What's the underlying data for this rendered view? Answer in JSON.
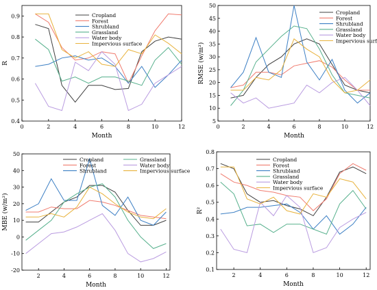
{
  "chart_data": [
    {
      "type": "line",
      "xlabel": "Month",
      "ylabel": "R",
      "x": [
        1,
        2,
        3,
        4,
        5,
        6,
        7,
        8,
        9,
        10,
        11,
        12
      ],
      "xlim": [
        0,
        12
      ],
      "ylim": [
        0.4,
        0.95
      ],
      "xticks": [
        0,
        2,
        4,
        6,
        8,
        10,
        12
      ],
      "yticks": [
        0.4,
        0.5,
        0.6,
        0.7,
        0.8,
        0.9
      ],
      "ytick_labels": [
        "0.4",
        "0.5",
        "0.6",
        "0.7",
        "0.8",
        "0.9"
      ],
      "legend_position": "upper-center",
      "series": [
        {
          "name": "Cropland",
          "color": "#3f3f3f",
          "values": [
            0.86,
            0.84,
            0.57,
            0.49,
            0.57,
            0.57,
            0.55,
            0.555,
            0.73,
            0.78,
            0.8,
            0.79
          ]
        },
        {
          "name": "Forest",
          "color": "#f07b6e",
          "values": [
            0.91,
            0.87,
            0.75,
            0.69,
            0.7,
            0.73,
            0.72,
            0.58,
            0.71,
            0.83,
            0.91,
            0.905
          ]
        },
        {
          "name": "Shrubland",
          "color": "#3c7fc4",
          "values": [
            0.66,
            0.67,
            0.7,
            0.71,
            0.69,
            0.7,
            0.66,
            0.58,
            0.66,
            0.56,
            0.62,
            0.69
          ]
        },
        {
          "name": "Grassland",
          "color": "#56b08c",
          "values": [
            0.79,
            0.74,
            0.59,
            0.61,
            0.58,
            0.61,
            0.61,
            0.59,
            0.57,
            0.69,
            0.75,
            0.67
          ]
        },
        {
          "name": "Water body",
          "color": "#b99be0",
          "values": [
            0.58,
            0.47,
            0.45,
            0.68,
            0.64,
            0.73,
            0.67,
            0.45,
            0.48,
            0.58,
            0.62,
            0.66
          ]
        },
        {
          "name": "Impervious surface",
          "color": "#e8b23c",
          "values": [
            0.91,
            0.91,
            0.74,
            0.7,
            0.73,
            0.67,
            0.66,
            0.74,
            0.72,
            0.81,
            0.77,
            0.72
          ]
        }
      ]
    },
    {
      "type": "line",
      "xlabel": "Month",
      "ylabel": "RMSE (w/m²)",
      "x": [
        1,
        2,
        3,
        4,
        5,
        6,
        7,
        8,
        9,
        10,
        11,
        12
      ],
      "xlim": [
        0,
        12
      ],
      "ylim": [
        5,
        50
      ],
      "xticks": [
        0,
        2,
        4,
        6,
        8,
        10,
        12
      ],
      "yticks": [
        5,
        10,
        15,
        20,
        25,
        30,
        35,
        40,
        45,
        50
      ],
      "ytick_labels": [
        "5",
        "10",
        "15",
        "20",
        "25",
        "30",
        "35",
        "40",
        "45",
        "50"
      ],
      "legend_position": "upper-center",
      "series": [
        {
          "name": "Cropland",
          "color": "#3f3f3f",
          "values": [
            14,
            15,
            22,
            27,
            30,
            35,
            37,
            35,
            27,
            19,
            17,
            16
          ]
        },
        {
          "name": "Forest",
          "color": "#f07b6e",
          "values": [
            18,
            19,
            24,
            24,
            23,
            26.5,
            27.5,
            28.5,
            26,
            21,
            17,
            17
          ]
        },
        {
          "name": "Shrubland",
          "color": "#3c7fc4",
          "values": [
            18,
            24,
            37.5,
            24,
            22,
            50,
            28,
            21,
            29,
            17,
            12,
            16
          ]
        },
        {
          "name": "Grassland",
          "color": "#56b08c",
          "values": [
            11,
            17,
            28,
            33,
            38,
            42,
            41,
            33,
            23,
            16,
            15,
            14
          ]
        },
        {
          "name": "Water body",
          "color": "#b99be0",
          "values": [
            16,
            12,
            14,
            10,
            11,
            12,
            19,
            16,
            20,
            22,
            17,
            11
          ]
        },
        {
          "name": "Impervious surface",
          "color": "#e8b23c",
          "values": [
            17,
            17,
            22,
            21,
            25,
            37,
            33,
            30,
            21,
            16,
            17,
            21
          ]
        }
      ]
    },
    {
      "type": "line",
      "xlabel": "Month",
      "ylabel": "MBE (w/m²)",
      "x": [
        1,
        2,
        3,
        4,
        5,
        6,
        7,
        8,
        9,
        10,
        11,
        12
      ],
      "xlim": [
        0.7,
        12.3
      ],
      "ylim": [
        -20,
        50
      ],
      "xticks": [
        2,
        4,
        6,
        8,
        10,
        12
      ],
      "yticks": [
        -20,
        -10,
        0,
        10,
        20,
        30,
        40,
        50
      ],
      "ytick_labels": [
        "-20",
        "-10",
        "0",
        "10",
        "20",
        "30",
        "40",
        "50"
      ],
      "legend_position": "upper-center",
      "series": [
        {
          "name": "Cropland",
          "color": "#3f3f3f",
          "values": [
            9,
            9,
            15,
            21,
            24,
            31,
            31,
            27,
            16,
            7,
            7,
            10
          ]
        },
        {
          "name": "Forest",
          "color": "#f07b6e",
          "values": [
            15,
            15,
            18,
            17,
            17,
            22,
            21,
            19,
            16,
            13,
            12,
            11
          ]
        },
        {
          "name": "Shrubland",
          "color": "#3c7fc4",
          "values": [
            16,
            20,
            35,
            22,
            22,
            47,
            19,
            13,
            24,
            10,
            7,
            15
          ]
        },
        {
          "name": "Grassland",
          "color": "#56b08c",
          "values": [
            -2,
            4,
            10,
            21,
            26,
            30,
            32,
            24,
            10,
            0,
            -7,
            -4
          ]
        },
        {
          "name": "Water body",
          "color": "#b99be0",
          "values": [
            -10,
            -4,
            2,
            3,
            6,
            10,
            14,
            4,
            -10,
            -15,
            -13,
            -9
          ]
        },
        {
          "name": "Impervious surface",
          "color": "#e8b23c",
          "values": [
            12,
            12,
            14,
            12,
            18,
            30,
            26,
            20,
            15,
            12,
            11,
            17
          ]
        }
      ]
    },
    {
      "type": "line",
      "xlabel": "Month",
      "ylabel": "R²",
      "x": [
        1,
        2,
        3,
        4,
        5,
        6,
        7,
        8,
        9,
        10,
        11,
        12
      ],
      "xlim": [
        0.7,
        12.3
      ],
      "ylim": [
        0.1,
        0.8
      ],
      "xticks": [
        2,
        4,
        6,
        8,
        10,
        12
      ],
      "yticks": [
        0.1,
        0.2,
        0.3,
        0.4,
        0.5,
        0.6,
        0.7,
        0.8
      ],
      "ytick_labels": [
        "0.1",
        "0.2",
        "0.3",
        "0.4",
        "0.5",
        "0.6",
        "0.7",
        "0.8"
      ],
      "legend_position": "upper-center",
      "series": [
        {
          "name": "Cropland",
          "color": "#3f3f3f",
          "values": [
            0.73,
            0.7,
            0.55,
            0.5,
            0.51,
            0.48,
            0.46,
            0.42,
            0.53,
            0.68,
            0.71,
            0.67
          ]
        },
        {
          "name": "Forest",
          "color": "#f07b6e",
          "values": [
            0.67,
            0.62,
            0.6,
            0.57,
            0.56,
            0.54,
            0.53,
            0.45,
            0.52,
            0.67,
            0.73,
            0.69
          ]
        },
        {
          "name": "Shrubland",
          "color": "#3c7fc4",
          "values": [
            0.43,
            0.44,
            0.47,
            0.47,
            0.48,
            0.49,
            0.44,
            0.34,
            0.42,
            0.31,
            0.37,
            0.47
          ]
        },
        {
          "name": "Grassland",
          "color": "#56b08c",
          "values": [
            0.62,
            0.55,
            0.36,
            0.37,
            0.32,
            0.37,
            0.37,
            0.34,
            0.31,
            0.49,
            0.57,
            0.46
          ]
        },
        {
          "name": "Water body",
          "color": "#b99be0",
          "values": [
            0.34,
            0.22,
            0.2,
            0.5,
            0.42,
            0.54,
            0.47,
            0.2,
            0.23,
            0.35,
            0.4,
            0.44
          ]
        },
        {
          "name": "Impervious surface",
          "color": "#e8b23c",
          "values": [
            0.71,
            0.71,
            0.52,
            0.49,
            0.53,
            0.45,
            0.43,
            0.55,
            0.53,
            0.64,
            0.62,
            0.52
          ]
        }
      ]
    }
  ]
}
